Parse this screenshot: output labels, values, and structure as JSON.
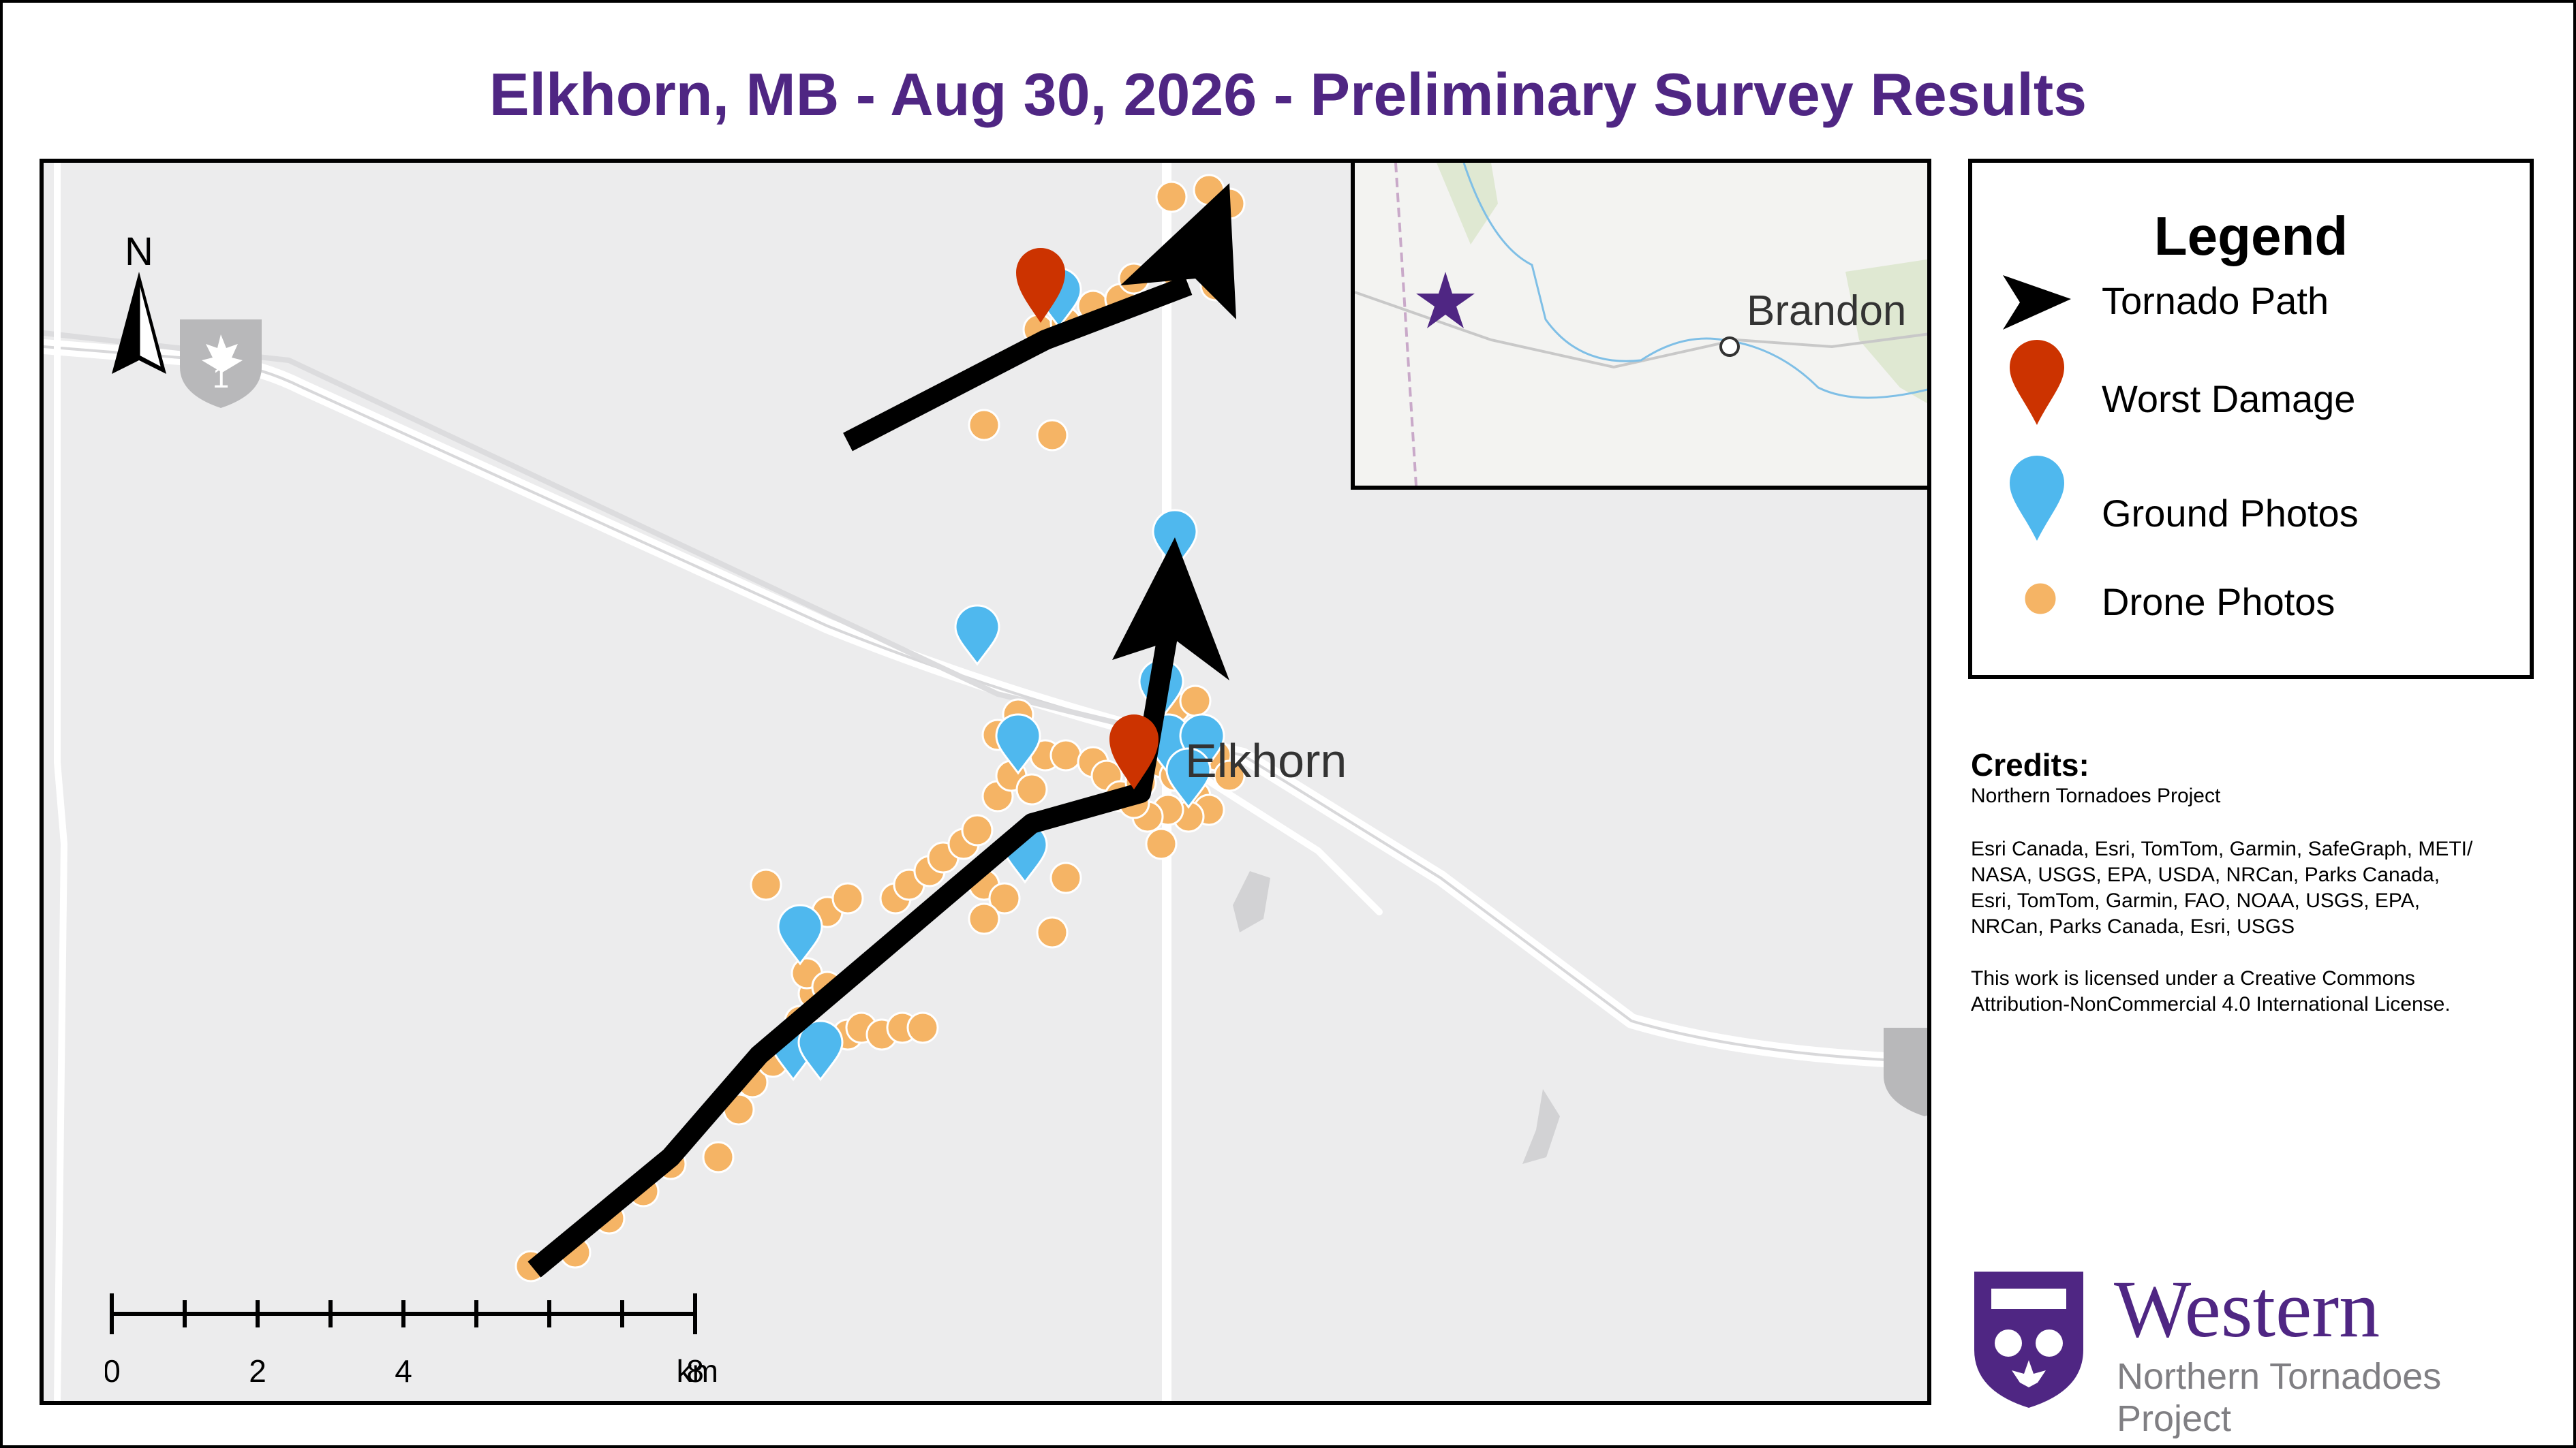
{
  "title": "Elkhorn, MB - Aug 30, 2026 - Preliminary Survey Results",
  "map": {
    "place_label": "Elkhorn",
    "highway_shield": "1",
    "north_arrow": "N",
    "inset": {
      "city_label": "Brandon"
    },
    "scale_bar": {
      "ticks": [
        "0",
        "2",
        "4",
        "8"
      ],
      "unit": "km"
    },
    "colors": {
      "tornado_path": "#000000",
      "worst_damage": "#cc3300",
      "ground_photo": "#4fb8ee",
      "drone_photo": "#f5b465",
      "location_star": "#4f2683"
    }
  },
  "legend": {
    "title": "Legend",
    "items": [
      {
        "label": "Tornado Path",
        "symbol": "black-arrow-icon"
      },
      {
        "label": "Worst Damage",
        "symbol": "red-pin-icon"
      },
      {
        "label": "Ground Photos",
        "symbol": "blue-pin-icon"
      },
      {
        "label": "Drone Photos",
        "symbol": "orange-dot-icon"
      }
    ]
  },
  "credits": {
    "heading": "Credits:",
    "line1": "Northern Tornadoes Project",
    "sources": [
      "Esri Canada, Esri, TomTom, Garmin, SafeGraph, METI/",
      "NASA, USGS, EPA, USDA, NRCan, Parks Canada,",
      "Esri, TomTom, Garmin, FAO, NOAA, USGS, EPA,",
      "NRCan, Parks Canada, Esri, USGS"
    ],
    "license": [
      "This work is licensed under a Creative Commons",
      "Attribution-NonCommercial 4.0 International License."
    ]
  },
  "logo": {
    "wordmark": "Western",
    "subline": "Northern Tornadoes Project"
  }
}
